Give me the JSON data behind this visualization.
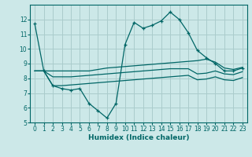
{
  "xlabel": "Humidex (Indice chaleur)",
  "ylabel": "",
  "bg_color": "#cce8e8",
  "grid_color": "#aacccc",
  "line_color": "#006666",
  "xlim": [
    -0.5,
    23.5
  ],
  "ylim": [
    5,
    13
  ],
  "yticks": [
    5,
    6,
    7,
    8,
    9,
    10,
    11,
    12
  ],
  "xticks": [
    0,
    1,
    2,
    3,
    4,
    5,
    6,
    7,
    8,
    9,
    10,
    11,
    12,
    13,
    14,
    15,
    16,
    17,
    18,
    19,
    20,
    21,
    22,
    23
  ],
  "series_main": [
    11.7,
    8.5,
    7.5,
    7.3,
    7.2,
    7.3,
    6.3,
    5.8,
    5.3,
    6.3,
    10.3,
    11.8,
    11.4,
    11.6,
    11.9,
    12.5,
    12.0,
    11.1,
    9.9,
    9.4,
    9.0,
    8.5,
    8.5,
    8.7
  ],
  "series_top": [
    8.5,
    8.5,
    8.5,
    8.5,
    8.5,
    8.5,
    8.5,
    8.6,
    8.7,
    8.75,
    8.8,
    8.85,
    8.9,
    8.95,
    9.0,
    9.05,
    9.1,
    9.15,
    9.2,
    9.3,
    9.1,
    8.7,
    8.6,
    8.75
  ],
  "series_mid": [
    8.5,
    8.5,
    8.1,
    8.1,
    8.1,
    8.15,
    8.2,
    8.25,
    8.3,
    8.35,
    8.4,
    8.45,
    8.5,
    8.55,
    8.6,
    8.65,
    8.65,
    8.65,
    8.3,
    8.35,
    8.5,
    8.3,
    8.25,
    8.45
  ],
  "series_bot": [
    8.5,
    8.5,
    7.5,
    7.5,
    7.55,
    7.6,
    7.65,
    7.7,
    7.75,
    7.8,
    7.85,
    7.9,
    7.95,
    8.0,
    8.05,
    8.1,
    8.15,
    8.2,
    7.9,
    7.95,
    8.1,
    7.9,
    7.85,
    8.05
  ]
}
